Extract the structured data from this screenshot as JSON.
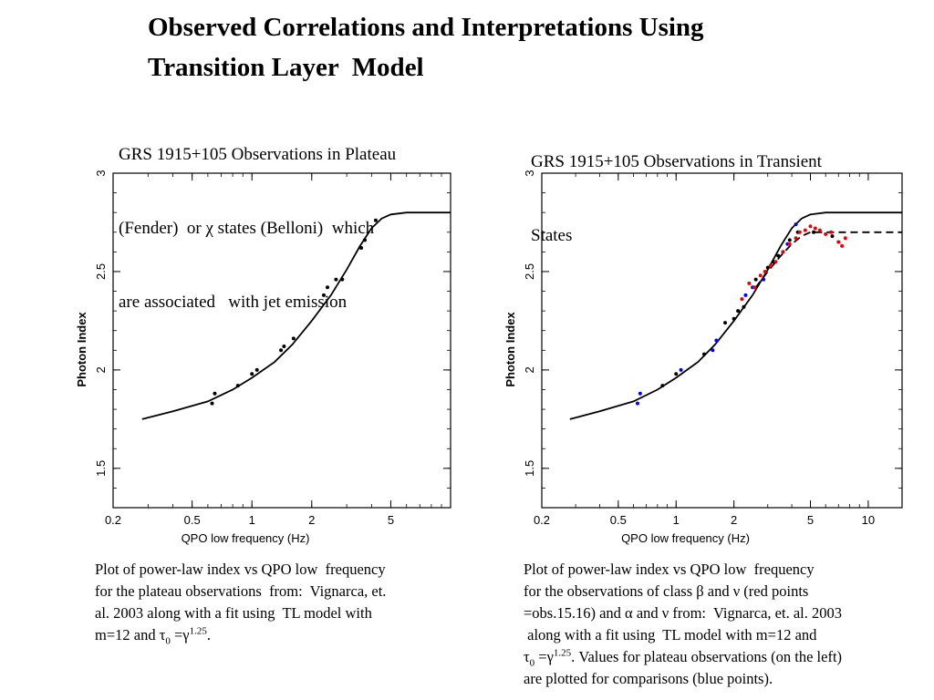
{
  "title": {
    "line1": "Observed Correlations and Interpretations Using",
    "line2": "Transition Layer  Model"
  },
  "left_heading": {
    "line1": "GRS 1915+105 Observations in Plateau",
    "line2": "(Fender)  or χ states (Belloni)  which",
    "line3": "are associated   with jet emission"
  },
  "right_heading": {
    "line1": "GRS 1915+105 Observations in Transient",
    "line2": "States"
  },
  "left_caption": {
    "line1": "Plot of power-law index vs QPO low  frequency",
    "line2": "for the plateau observations  from:  Vignarca, et.",
    "line3": "al. 2003 along with a fit using  TL model with",
    "line4_pre": "m=12 and τ",
    "line4_sub": "0",
    "line4_mid": " =γ",
    "line4_sup": "1.25",
    "line4_post": "."
  },
  "right_caption": {
    "line1": "Plot of power-law index vs QPO low  frequency",
    "line2": "for the observations of class β and ν (red points",
    "line3": "=obs.15.16) and α and ν from:  Vignarca, et. al. 2003",
    "line4": " along with a fit using  TL model with m=12 and",
    "line5_pre": "τ",
    "line5_sub": "0",
    "line5_mid": " =γ",
    "line5_sup": "1.25",
    "line5_post": ". Values for plateau observations (on the left)",
    "line6": "are plotted for comparisons (blue points)."
  },
  "chart_data": [
    {
      "type": "scatter",
      "xlabel": "QPO low frequency (Hz)",
      "ylabel": "Photon Index",
      "xscale": "log",
      "xlim": [
        0.2,
        10
      ],
      "ylim": [
        1.3,
        3.0
      ],
      "xticks": [
        0.2,
        0.5,
        1,
        2,
        5
      ],
      "xtick_labels": [
        "0.2",
        "0.5",
        "1",
        "2",
        "5"
      ],
      "yticks": [
        1.5,
        2,
        2.5,
        3
      ],
      "ytick_labels": [
        "1.5",
        "2",
        "2.5",
        "3"
      ],
      "series": [
        {
          "kind": "points",
          "color": "#000000",
          "points": [
            [
              0.63,
              1.83
            ],
            [
              0.65,
              1.88
            ],
            [
              0.85,
              1.92
            ],
            [
              1.0,
              1.98
            ],
            [
              1.06,
              2.0
            ],
            [
              1.4,
              2.1
            ],
            [
              1.45,
              2.12
            ],
            [
              1.62,
              2.16
            ],
            [
              2.3,
              2.38
            ],
            [
              2.4,
              2.42
            ],
            [
              2.65,
              2.46
            ],
            [
              2.85,
              2.46
            ],
            [
              3.55,
              2.62
            ],
            [
              3.7,
              2.66
            ],
            [
              4.2,
              2.76
            ]
          ]
        },
        {
          "kind": "fit",
          "style": "solid",
          "color": "#000000",
          "points": [
            [
              0.28,
              1.75
            ],
            [
              0.4,
              1.79
            ],
            [
              0.6,
              1.84
            ],
            [
              0.8,
              1.9
            ],
            [
              1.0,
              1.96
            ],
            [
              1.3,
              2.04
            ],
            [
              1.6,
              2.13
            ],
            [
              2.0,
              2.25
            ],
            [
              2.5,
              2.38
            ],
            [
              3.0,
              2.51
            ],
            [
              3.5,
              2.63
            ],
            [
              4.0,
              2.72
            ],
            [
              4.5,
              2.77
            ],
            [
              5.0,
              2.79
            ],
            [
              6.0,
              2.8
            ],
            [
              10.0,
              2.8
            ]
          ]
        }
      ]
    },
    {
      "type": "scatter",
      "xlabel": "QPO low frequency (Hz)",
      "ylabel": "Photon Index",
      "xscale": "log",
      "xlim": [
        0.2,
        15
      ],
      "ylim": [
        1.3,
        3.0
      ],
      "xticks": [
        0.2,
        0.5,
        1,
        2,
        5,
        10
      ],
      "xtick_labels": [
        "0.2",
        "0.5",
        "1",
        "2",
        "5",
        "10"
      ],
      "yticks": [
        1.5,
        2,
        2.5,
        3
      ],
      "ytick_labels": [
        "1.5",
        "2",
        "2.5",
        "3"
      ],
      "series": [
        {
          "kind": "points",
          "color": "#0000ee",
          "points": [
            [
              0.63,
              1.83
            ],
            [
              0.65,
              1.88
            ],
            [
              1.06,
              2.0
            ],
            [
              1.55,
              2.1
            ],
            [
              1.62,
              2.15
            ],
            [
              2.3,
              2.38
            ],
            [
              2.5,
              2.42
            ],
            [
              2.85,
              2.46
            ],
            [
              3.6,
              2.6
            ],
            [
              3.8,
              2.64
            ],
            [
              4.2,
              2.74
            ]
          ]
        },
        {
          "kind": "points",
          "color": "#000000",
          "points": [
            [
              0.85,
              1.92
            ],
            [
              1.0,
              1.98
            ],
            [
              1.4,
              2.08
            ],
            [
              1.8,
              2.24
            ],
            [
              2.0,
              2.26
            ],
            [
              2.1,
              2.3
            ],
            [
              2.25,
              2.32
            ],
            [
              2.6,
              2.46
            ],
            [
              3.0,
              2.52
            ],
            [
              3.2,
              2.55
            ],
            [
              3.4,
              2.58
            ],
            [
              3.9,
              2.66
            ],
            [
              4.3,
              2.7
            ],
            [
              5.2,
              2.7
            ],
            [
              6.5,
              2.68
            ]
          ]
        },
        {
          "kind": "points",
          "color": "#ee0000",
          "points": [
            [
              2.2,
              2.36
            ],
            [
              2.4,
              2.44
            ],
            [
              2.55,
              2.42
            ],
            [
              2.75,
              2.48
            ],
            [
              2.9,
              2.5
            ],
            [
              3.1,
              2.53
            ],
            [
              3.3,
              2.55
            ],
            [
              3.6,
              2.6
            ],
            [
              3.9,
              2.64
            ],
            [
              4.2,
              2.67
            ],
            [
              4.4,
              2.7
            ],
            [
              4.7,
              2.71
            ],
            [
              5.0,
              2.73
            ],
            [
              5.3,
              2.72
            ],
            [
              5.6,
              2.71
            ],
            [
              6.0,
              2.69
            ],
            [
              6.4,
              2.7
            ],
            [
              7.0,
              2.65
            ],
            [
              7.3,
              2.63
            ],
            [
              7.6,
              2.67
            ]
          ]
        },
        {
          "kind": "fit",
          "style": "solid",
          "color": "#000000",
          "points": [
            [
              0.28,
              1.75
            ],
            [
              0.4,
              1.79
            ],
            [
              0.6,
              1.84
            ],
            [
              0.8,
              1.9
            ],
            [
              1.0,
              1.96
            ],
            [
              1.3,
              2.04
            ],
            [
              1.6,
              2.13
            ],
            [
              2.0,
              2.25
            ],
            [
              2.5,
              2.38
            ],
            [
              3.0,
              2.51
            ],
            [
              3.5,
              2.63
            ],
            [
              4.0,
              2.72
            ],
            [
              4.5,
              2.77
            ],
            [
              5.0,
              2.79
            ],
            [
              6.0,
              2.8
            ],
            [
              15.0,
              2.8
            ]
          ]
        },
        {
          "kind": "fit",
          "style": "dashed",
          "color": "#000000",
          "points": [
            [
              2.6,
              2.42
            ],
            [
              3.0,
              2.5
            ],
            [
              3.5,
              2.58
            ],
            [
              4.0,
              2.64
            ],
            [
              4.5,
              2.68
            ],
            [
              5.0,
              2.7
            ],
            [
              6.0,
              2.7
            ],
            [
              15.0,
              2.7
            ]
          ]
        }
      ]
    }
  ]
}
